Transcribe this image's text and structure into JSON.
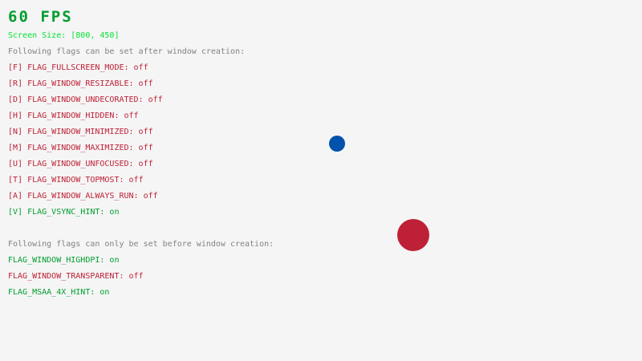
{
  "fps": "60 FPS",
  "screen_size": "Screen Size: [800, 450]",
  "after_heading": "Following flags can be set after window creation:",
  "after_flags": [
    {
      "label": "[F] FLAG_FULLSCREEN_MODE: off",
      "on": false
    },
    {
      "label": "[R] FLAG_WINDOW_RESIZABLE: off",
      "on": false
    },
    {
      "label": "[D] FLAG_WINDOW_UNDECORATED: off",
      "on": false
    },
    {
      "label": "[H] FLAG_WINDOW_HIDDEN: off",
      "on": false
    },
    {
      "label": "[N] FLAG_WINDOW_MINIMIZED: off",
      "on": false
    },
    {
      "label": "[M] FLAG_WINDOW_MAXIMIZED: off",
      "on": false
    },
    {
      "label": "[U] FLAG_WINDOW_UNFOCUSED: off",
      "on": false
    },
    {
      "label": "[T] FLAG_WINDOW_TOPMOST: off",
      "on": false
    },
    {
      "label": "[A] FLAG_WINDOW_ALWAYS_RUN: off",
      "on": false
    },
    {
      "label": "[V] FLAG_VSYNC_HINT: on",
      "on": true
    }
  ],
  "before_heading": "Following flags can only be set before window creation:",
  "before_flags": [
    {
      "label": "FLAG_WINDOW_HIGHDPI: on",
      "on": true
    },
    {
      "label": "FLAG_WINDOW_TRANSPARENT: off",
      "on": false
    },
    {
      "label": "FLAG_MSAA_4X_HINT: on",
      "on": true
    }
  ],
  "colors": {
    "background": "#f5f5f5",
    "on": "#009e2f",
    "off": "#be2137",
    "heading": "#828282",
    "screen_size": "#00e430",
    "fps": "#009e2f",
    "blue_ball": "#0052ac",
    "red_ball": "#be2137"
  }
}
